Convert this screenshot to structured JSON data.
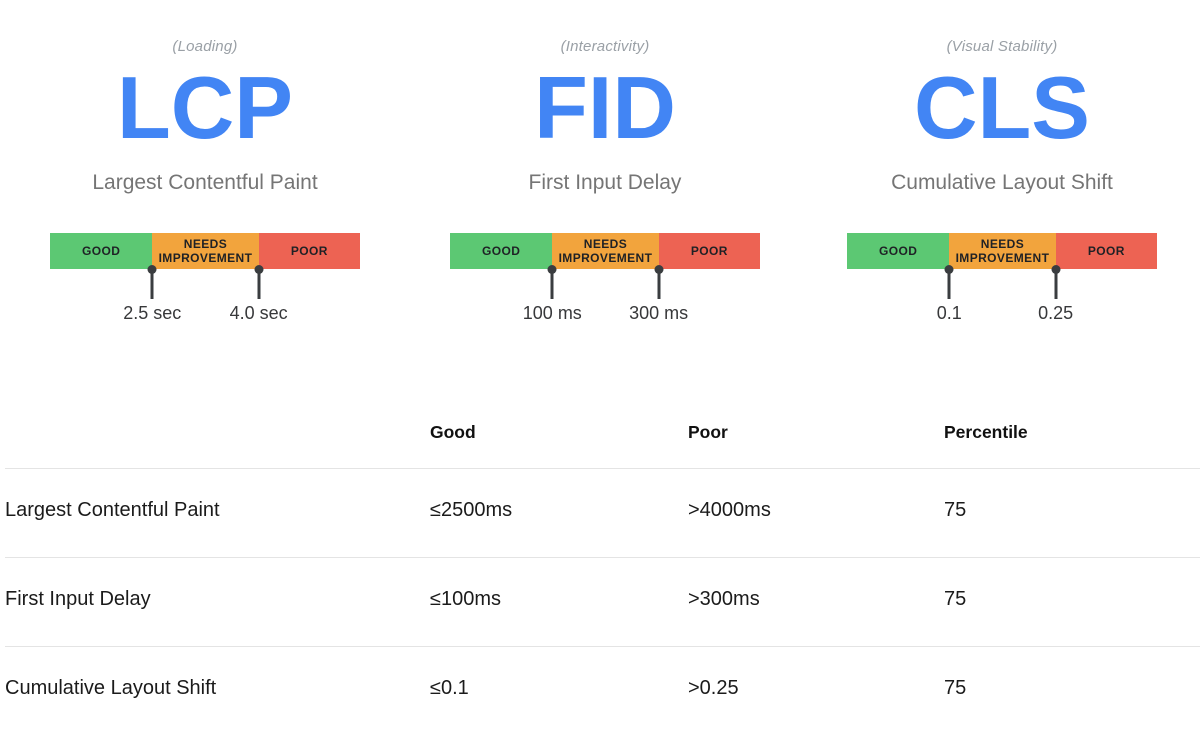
{
  "colors": {
    "blue": "#4285F4",
    "green": "#5CC873",
    "orange": "#F2A43D",
    "red": "#ED6353",
    "marker": "#3A3D40"
  },
  "vitals": [
    {
      "tag": "(Loading)",
      "abbr": "LCP",
      "name": "Largest Contentful Paint",
      "scale": {
        "segments": [
          "GOOD",
          "NEEDS IMPROVEMENT",
          "POOR"
        ],
        "thresholds": [
          "2.5 sec",
          "4.0 sec"
        ]
      }
    },
    {
      "tag": "(Interactivity)",
      "abbr": "FID",
      "name": "First Input Delay",
      "scale": {
        "segments": [
          "GOOD",
          "NEEDS IMPROVEMENT",
          "POOR"
        ],
        "thresholds": [
          "100 ms",
          "300 ms"
        ]
      }
    },
    {
      "tag": "(Visual Stability)",
      "abbr": "CLS",
      "name": "Cumulative Layout Shift",
      "scale": {
        "segments": [
          "GOOD",
          "NEEDS IMPROVEMENT",
          "POOR"
        ],
        "thresholds": [
          "0.1",
          "0.25"
        ]
      }
    }
  ],
  "table": {
    "headers": [
      "Good",
      "Poor",
      "Percentile"
    ],
    "rows": [
      {
        "metric": "Largest Contentful Paint",
        "good": "≤2500ms",
        "poor": ">4000ms",
        "percentile": "75"
      },
      {
        "metric": "First Input Delay",
        "good": "≤100ms",
        "poor": ">300ms",
        "percentile": "75"
      },
      {
        "metric": "Cumulative Layout Shift",
        "good": "≤0.1",
        "poor": ">0.25",
        "percentile": "75"
      }
    ]
  }
}
